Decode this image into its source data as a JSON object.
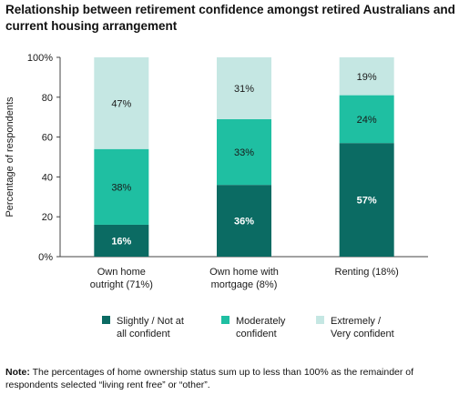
{
  "title": "Relationship between retirement confidence amongst retired Australians and current housing arrangement",
  "note": {
    "label": "Note:",
    "text": " The percentages of home ownership status sum up to less than 100% as the remainder of respondents selected “living rent free” or “other”."
  },
  "chart_data": {
    "type": "bar",
    "stacked": true,
    "title": "Relationship between retirement confidence amongst retired Australians and current housing arrangement",
    "xlabel": "",
    "ylabel": "Percentage of respondents",
    "ylim": [
      0,
      100
    ],
    "yticks": [
      "0%",
      "20",
      "40",
      "60",
      "80",
      "100%"
    ],
    "ytick_values": [
      0,
      20,
      40,
      60,
      80,
      100
    ],
    "categories": [
      [
        "Own home",
        "outright (71%)"
      ],
      [
        "Own home with",
        "mortgage (8%)"
      ],
      [
        "Renting (18%)"
      ]
    ],
    "series": [
      {
        "name": [
          "Slightly / Not at",
          "all confident"
        ],
        "values": [
          16,
          36,
          57
        ],
        "labels": [
          "16%",
          "36%",
          "57%"
        ],
        "color": "#0b6b63",
        "label_color": "#ffffff"
      },
      {
        "name": [
          "Moderately",
          "confident"
        ],
        "values": [
          38,
          33,
          24
        ],
        "labels": [
          "38%",
          "33%",
          "24%"
        ],
        "color": "#1fbfa2",
        "label_color": "#1a1a1a"
      },
      {
        "name": [
          "Extremely /",
          "Very confident"
        ],
        "values": [
          47,
          31,
          19
        ],
        "labels": [
          "47%",
          "31%",
          "19%"
        ],
        "color": "#c5e7e3",
        "label_color": "#1a1a1a"
      }
    ],
    "legend_position": "bottom",
    "grid": false
  }
}
